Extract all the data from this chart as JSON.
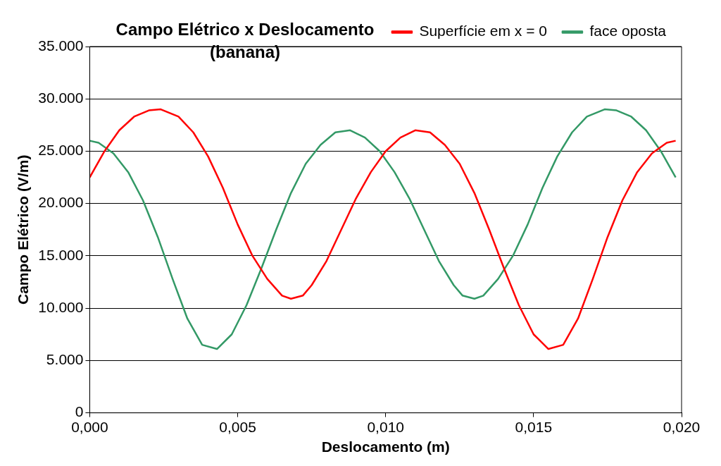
{
  "chart_data": {
    "type": "line",
    "title": "Campo Elétrico x Deslocamento\n(banana)",
    "xlabel": "Deslocamento (m)",
    "ylabel": "Campo Elétrico (V/m)",
    "xlim": [
      0,
      0.02
    ],
    "xticks": [
      {
        "value": 0,
        "label": "0,000"
      },
      {
        "value": 0.005,
        "label": "0,005"
      },
      {
        "value": 0.01,
        "label": "0,010"
      },
      {
        "value": 0.015,
        "label": "0,015"
      },
      {
        "value": 0.02,
        "label": "0,020"
      }
    ],
    "ylim": [
      0,
      35000
    ],
    "yticks": [
      {
        "value": 0,
        "label": "0"
      },
      {
        "value": 5000,
        "label": "5.000"
      },
      {
        "value": 10000,
        "label": "10.000"
      },
      {
        "value": 15000,
        "label": "15.000"
      },
      {
        "value": 20000,
        "label": "20.000"
      },
      {
        "value": 25000,
        "label": "25.000"
      },
      {
        "value": 30000,
        "label": "30.000"
      },
      {
        "value": 35000,
        "label": "35.000"
      }
    ],
    "grid": "y",
    "legend": "top right",
    "marker": "none",
    "line_style": "solid",
    "series": [
      {
        "name": "Superfície em x = 0",
        "color": "#ff0000",
        "x": [
          0,
          0.0005,
          0.001,
          0.0015,
          0.002,
          0.0024,
          0.003,
          0.0035,
          0.004,
          0.0045,
          0.005,
          0.0055,
          0.006,
          0.0065,
          0.0068,
          0.0072,
          0.0075,
          0.008,
          0.0085,
          0.009,
          0.0095,
          0.01,
          0.0105,
          0.011,
          0.0115,
          0.012,
          0.0125,
          0.013,
          0.0135,
          0.014,
          0.0145,
          0.015,
          0.0155,
          0.016,
          0.0165,
          0.017,
          0.0175,
          0.018,
          0.0185,
          0.019,
          0.0195,
          0.0198
        ],
        "values": [
          22500,
          25000,
          27000,
          28300,
          28900,
          29000,
          28300,
          26800,
          24500,
          21500,
          18000,
          15000,
          12800,
          11200,
          10900,
          11200,
          12200,
          14500,
          17500,
          20500,
          23000,
          25000,
          26300,
          27000,
          26800,
          25600,
          23800,
          21000,
          17500,
          13800,
          10300,
          7500,
          6100,
          6500,
          9000,
          12800,
          16800,
          20300,
          23000,
          24800,
          25800,
          26000
        ]
      },
      {
        "name": "face oposta",
        "color": "#339966",
        "x": [
          0,
          0.0003,
          0.0008,
          0.0013,
          0.0018,
          0.0023,
          0.0028,
          0.0033,
          0.0038,
          0.0043,
          0.0048,
          0.0053,
          0.0058,
          0.0063,
          0.0068,
          0.0073,
          0.0078,
          0.0083,
          0.0088,
          0.0093,
          0.0098,
          0.0103,
          0.0108,
          0.0113,
          0.0118,
          0.0123,
          0.0126,
          0.013,
          0.0133,
          0.0138,
          0.0143,
          0.0148,
          0.0153,
          0.0158,
          0.0163,
          0.0168,
          0.0174,
          0.0178,
          0.0183,
          0.0188,
          0.0193,
          0.0198
        ],
        "values": [
          26000,
          25800,
          24800,
          23000,
          20300,
          16800,
          12800,
          9000,
          6500,
          6100,
          7500,
          10300,
          13800,
          17500,
          21000,
          23800,
          25600,
          26800,
          27000,
          26300,
          25000,
          23000,
          20500,
          17500,
          14500,
          12200,
          11200,
          10900,
          11200,
          12800,
          15000,
          18000,
          21500,
          24500,
          26800,
          28300,
          29000,
          28900,
          28300,
          27000,
          25000,
          22500
        ]
      }
    ]
  }
}
